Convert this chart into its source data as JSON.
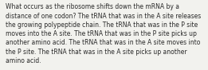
{
  "text": "What occurs as the ribosome shifts down the mRNA by a\ndistance of one codon? The tRNA that was in the A site releases\nthe growing polypeptide chain. The tRNA that was in the P site\nmoves into the A site. The tRNA that was in the P site picks up\nanother amino acid. The tRNA that was in the A site moves into\nthe P site. The tRNA that was in the A site picks up another\namino acid.",
  "background_color": "#f2f2ee",
  "text_color": "#2a2a2a",
  "font_size": 5.5,
  "fig_width": 2.61,
  "fig_height": 0.88,
  "dpi": 100
}
